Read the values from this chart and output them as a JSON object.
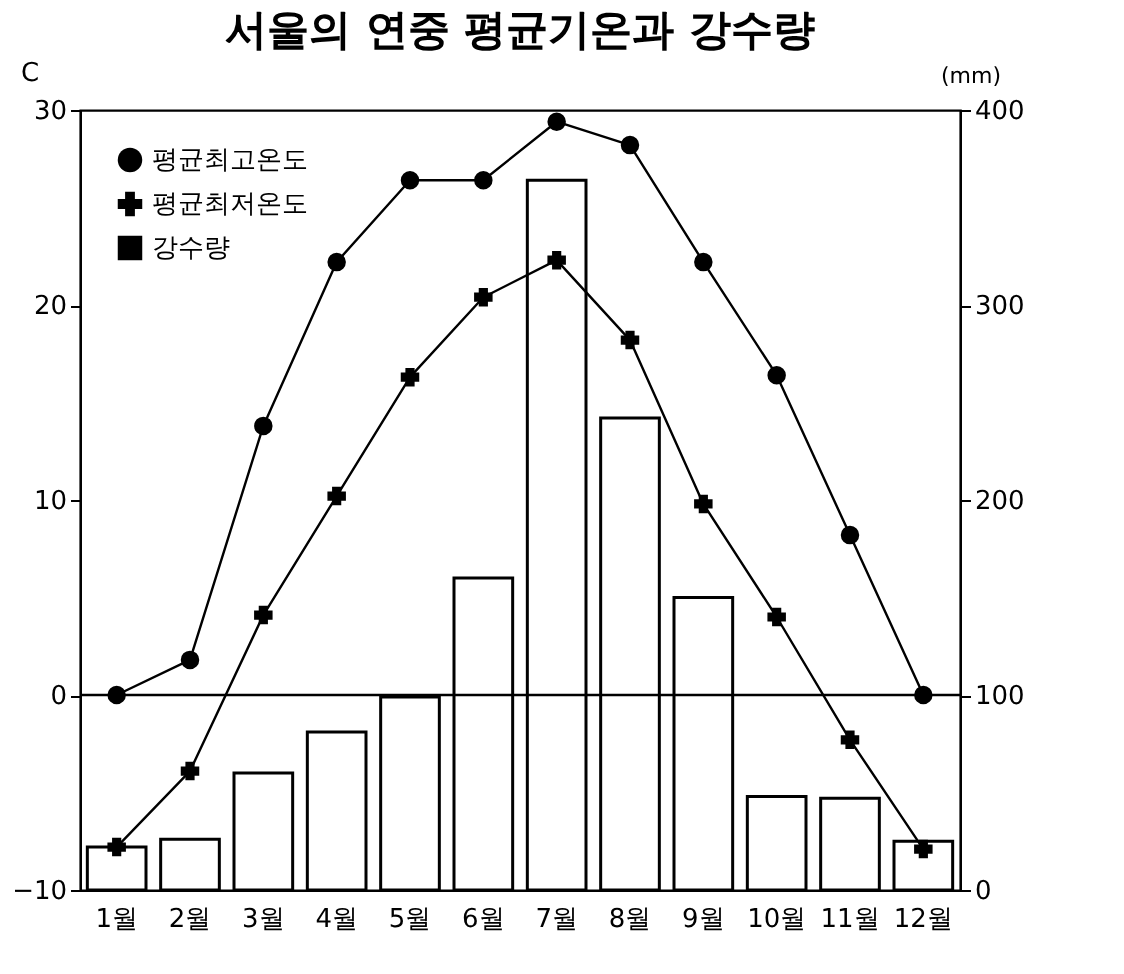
{
  "chart_data": {
    "type": "line",
    "title": "서울의 연중 평균기온과 강수량",
    "ylabel": "C",
    "y2label": "(mm)",
    "categories": [
      "1월",
      "2월",
      "3월",
      "4월",
      "5월",
      "6월",
      "7월",
      "8월",
      "9월",
      "10월",
      "11월",
      "12월"
    ],
    "series": [
      {
        "name": "평균최고온도",
        "type": "line",
        "marker": "circle",
        "color": "#000000",
        "values": [
          0,
          1.8,
          13.8,
          22.2,
          26.4,
          26.4,
          29.4,
          28.2,
          22.2,
          16.4,
          8.2,
          0
        ]
      },
      {
        "name": "평균최저온도",
        "type": "line",
        "marker": "cross",
        "color": "#000000",
        "values": [
          -7.8,
          -3.9,
          4.1,
          10.2,
          16.3,
          20.4,
          22.3,
          18.2,
          9.8,
          4.0,
          -2.3,
          -7.9
        ]
      },
      {
        "name": "강수량",
        "type": "bar",
        "axis": "y2",
        "color": "#000000",
        "values": [
          22,
          26,
          60,
          81,
          99,
          160,
          364,
          242,
          150,
          48,
          47,
          25
        ]
      }
    ],
    "ylim": [
      -10,
      30
    ],
    "yticks": [
      -10,
      0,
      10,
      20,
      30
    ],
    "y2lim": [
      0,
      400
    ],
    "y2ticks": [
      0,
      100,
      200,
      300,
      400
    ],
    "ref_lines": [
      {
        "axis": "y",
        "value": 0,
        "color": "#000000"
      }
    ],
    "grid": false,
    "legend": "top left"
  }
}
